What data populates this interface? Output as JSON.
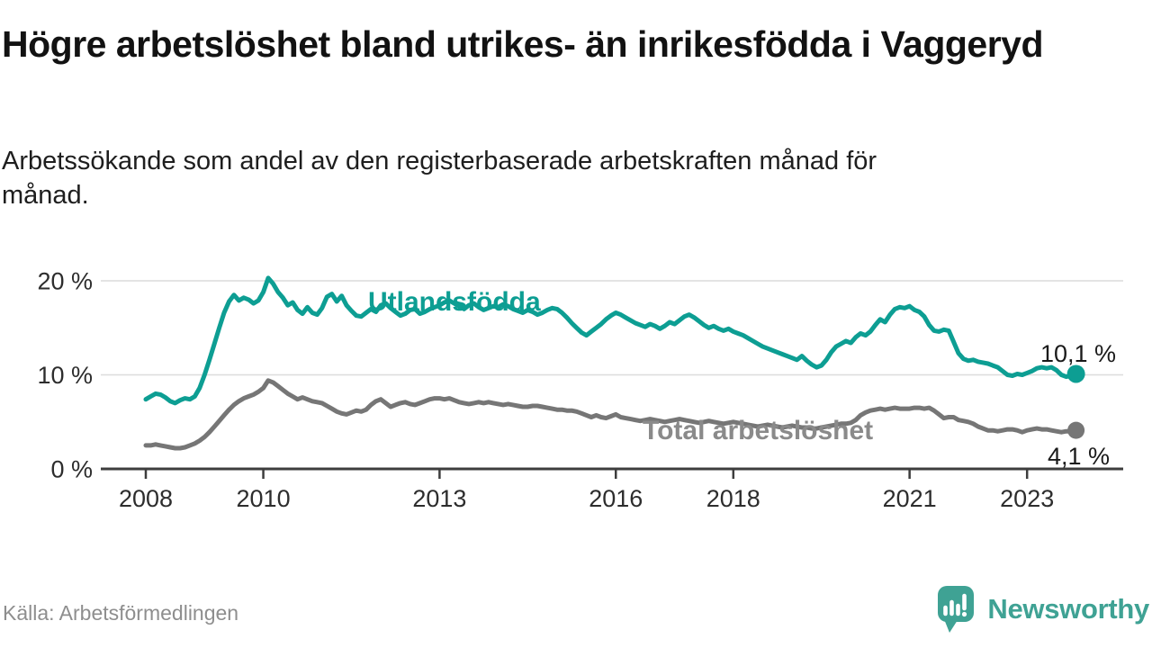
{
  "header": {
    "title": "Högre arbetslöshet bland utrikes- än inrikesfödda i Vaggeryd",
    "subtitle": "Arbetssökande som andel av den registerbaserade arbetskraften månad för månad."
  },
  "footer": {
    "source": "Källa: Arbetsförmedlingen",
    "logo_text": "Newsworthy"
  },
  "colors": {
    "series_foreign_born": "#0d9e93",
    "series_total": "#767676",
    "series_total_label": "#8a8a8a",
    "logo_teal": "#3fa294",
    "axis": "#3d3d3d",
    "grid": "#dcdcdc",
    "text": "#1e1e1e",
    "muted": "#8e8e8e"
  },
  "chart_data": {
    "type": "line",
    "title": "Högre arbetslöshet bland utrikes- än inrikesfödda i Vaggeryd",
    "subtitle": "Arbetssökande som andel av den registerbaserade arbetskraften månad för månad.",
    "frequency": "monthly",
    "x_start_year": 2008,
    "x_end_label_values": {
      "Utlandsfödda": "10,1 %",
      "Total arbetslöshet": "4,1 %"
    },
    "x_ticks": [
      "2008",
      "2010",
      "2013",
      "2016",
      "2018",
      "2021",
      "2023"
    ],
    "y_ticks": [
      {
        "value": 0,
        "label": "0 %"
      },
      {
        "value": 10,
        "label": "10 %"
      },
      {
        "value": 20,
        "label": "20 %"
      }
    ],
    "ylim": [
      0,
      21.5
    ],
    "grid": "horizontal",
    "legend_position": "inline-labels",
    "series": [
      {
        "name": "Utlandsfödda",
        "color": "#0d9e93",
        "label_color": "#0d9e93",
        "end_label": "10,1 %",
        "end_value": 10.1,
        "values": [
          7.4,
          7.7,
          8.0,
          7.9,
          7.6,
          7.2,
          7.0,
          7.3,
          7.5,
          7.4,
          7.7,
          8.6,
          10.0,
          11.6,
          13.3,
          15.0,
          16.6,
          17.8,
          18.5,
          17.9,
          18.2,
          18.0,
          17.6,
          17.9,
          18.8,
          20.3,
          19.7,
          18.8,
          18.2,
          17.4,
          17.7,
          16.9,
          16.5,
          17.2,
          16.6,
          16.4,
          17.1,
          18.3,
          18.6,
          17.8,
          18.4,
          17.4,
          16.8,
          16.3,
          16.2,
          16.6,
          17.0,
          16.7,
          17.4,
          17.6,
          17.1,
          16.7,
          16.3,
          16.5,
          16.9,
          17.0,
          16.5,
          16.7,
          17.0,
          17.2,
          17.4,
          17.7,
          17.9,
          17.6,
          17.3,
          17.0,
          17.4,
          17.6,
          17.2,
          16.9,
          17.1,
          17.3,
          17.2,
          17.5,
          17.3,
          17.0,
          16.8,
          16.6,
          16.9,
          16.7,
          16.4,
          16.6,
          16.9,
          17.1,
          17.0,
          16.6,
          16.1,
          15.5,
          15.0,
          14.5,
          14.2,
          14.6,
          15.0,
          15.4,
          15.9,
          16.3,
          16.6,
          16.4,
          16.1,
          15.8,
          15.5,
          15.3,
          15.1,
          15.4,
          15.2,
          14.9,
          15.2,
          15.6,
          15.4,
          15.8,
          16.2,
          16.4,
          16.1,
          15.7,
          15.3,
          15.0,
          15.2,
          14.9,
          14.7,
          14.9,
          14.6,
          14.4,
          14.2,
          13.9,
          13.6,
          13.3,
          13.0,
          12.8,
          12.6,
          12.4,
          12.2,
          12.0,
          11.8,
          11.6,
          12.0,
          11.5,
          11.1,
          10.8,
          11.0,
          11.6,
          12.4,
          13.0,
          13.3,
          13.6,
          13.4,
          14.0,
          14.4,
          14.2,
          14.6,
          15.3,
          15.9,
          15.6,
          16.4,
          17.0,
          17.2,
          17.1,
          17.3,
          16.9,
          16.7,
          16.2,
          15.3,
          14.7,
          14.6,
          14.8,
          14.7,
          13.5,
          12.3,
          11.7,
          11.5,
          11.6,
          11.4,
          11.3,
          11.2,
          11.0,
          10.8,
          10.4,
          10.0,
          9.9,
          10.1,
          10.0,
          10.2,
          10.4,
          10.7,
          10.8,
          10.7,
          10.8,
          10.5,
          10.0,
          9.8,
          9.9,
          10.1
        ]
      },
      {
        "name": "Total arbetslöshet",
        "color": "#767676",
        "label_color": "#8a8a8a",
        "end_label": "4,1 %",
        "end_value": 4.1,
        "values": [
          2.5,
          2.5,
          2.6,
          2.5,
          2.4,
          2.3,
          2.2,
          2.2,
          2.3,
          2.5,
          2.7,
          3.0,
          3.4,
          3.9,
          4.5,
          5.1,
          5.7,
          6.3,
          6.8,
          7.2,
          7.5,
          7.7,
          7.9,
          8.2,
          8.6,
          9.4,
          9.2,
          8.8,
          8.4,
          8.0,
          7.7,
          7.4,
          7.6,
          7.4,
          7.2,
          7.1,
          7.0,
          6.7,
          6.4,
          6.1,
          5.9,
          5.8,
          6.0,
          6.2,
          6.1,
          6.3,
          6.8,
          7.2,
          7.4,
          7.0,
          6.6,
          6.8,
          7.0,
          7.1,
          6.9,
          6.8,
          7.0,
          7.2,
          7.4,
          7.5,
          7.5,
          7.4,
          7.5,
          7.3,
          7.1,
          7.0,
          6.9,
          7.0,
          7.1,
          7.0,
          7.1,
          7.0,
          6.9,
          6.8,
          6.9,
          6.8,
          6.7,
          6.6,
          6.6,
          6.7,
          6.7,
          6.6,
          6.5,
          6.4,
          6.3,
          6.3,
          6.2,
          6.2,
          6.1,
          5.9,
          5.7,
          5.5,
          5.7,
          5.5,
          5.4,
          5.6,
          5.8,
          5.5,
          5.4,
          5.3,
          5.2,
          5.1,
          5.2,
          5.3,
          5.2,
          5.1,
          5.0,
          5.1,
          5.2,
          5.3,
          5.2,
          5.1,
          5.0,
          4.9,
          5.0,
          5.1,
          5.0,
          4.9,
          4.8,
          4.9,
          5.0,
          4.9,
          4.8,
          4.7,
          4.6,
          4.5,
          4.6,
          4.7,
          4.6,
          4.5,
          4.4,
          4.5,
          4.6,
          4.5,
          4.4,
          4.4,
          4.3,
          4.3,
          4.4,
          4.5,
          4.6,
          4.7,
          4.8,
          4.8,
          4.9,
          5.2,
          5.7,
          6.0,
          6.2,
          6.3,
          6.4,
          6.3,
          6.4,
          6.5,
          6.4,
          6.4,
          6.4,
          6.5,
          6.5,
          6.4,
          6.5,
          6.2,
          5.8,
          5.4,
          5.5,
          5.5,
          5.2,
          5.1,
          5.0,
          4.8,
          4.5,
          4.3,
          4.1,
          4.1,
          4.0,
          4.1,
          4.2,
          4.2,
          4.1,
          3.9,
          4.1,
          4.2,
          4.3,
          4.2,
          4.2,
          4.1,
          4.0,
          3.9,
          4.0,
          4.0,
          4.1
        ]
      }
    ]
  }
}
